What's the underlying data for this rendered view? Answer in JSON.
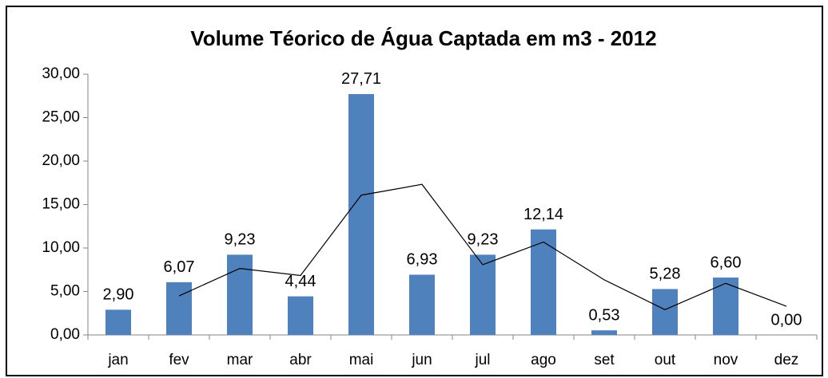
{
  "chart_data": {
    "type": "bar",
    "title": "Volume Téorico de Água Captada em m3 - 2012",
    "categories": [
      "jan",
      "fev",
      "mar",
      "abr",
      "mai",
      "jun",
      "jul",
      "ago",
      "set",
      "out",
      "nov",
      "dez"
    ],
    "values": [
      2.9,
      6.07,
      9.23,
      4.44,
      27.71,
      6.93,
      9.23,
      12.14,
      0.53,
      5.28,
      6.6,
      0.0
    ],
    "value_labels": [
      "2,90",
      "6,07",
      "9,23",
      "4,44",
      "27,71",
      "6,93",
      "9,23",
      "12,14",
      "0,53",
      "5,28",
      "6,60",
      "0,00"
    ],
    "color": "#4f81bd",
    "trend": {
      "color": "#000000",
      "values": [
        null,
        4.49,
        7.65,
        6.84,
        16.08,
        17.32,
        8.08,
        10.69,
        6.34,
        2.91,
        5.94,
        3.3
      ]
    },
    "ylim": [
      0,
      30
    ],
    "yticks": [
      {
        "value": 0,
        "label": "0,00"
      },
      {
        "value": 5,
        "label": "5,00"
      },
      {
        "value": 10,
        "label": "10,00"
      },
      {
        "value": 15,
        "label": "15,00"
      },
      {
        "value": 20,
        "label": "20,00"
      },
      {
        "value": 25,
        "label": "25,00"
      },
      {
        "value": 30,
        "label": "30,00"
      }
    ],
    "grid": false
  }
}
